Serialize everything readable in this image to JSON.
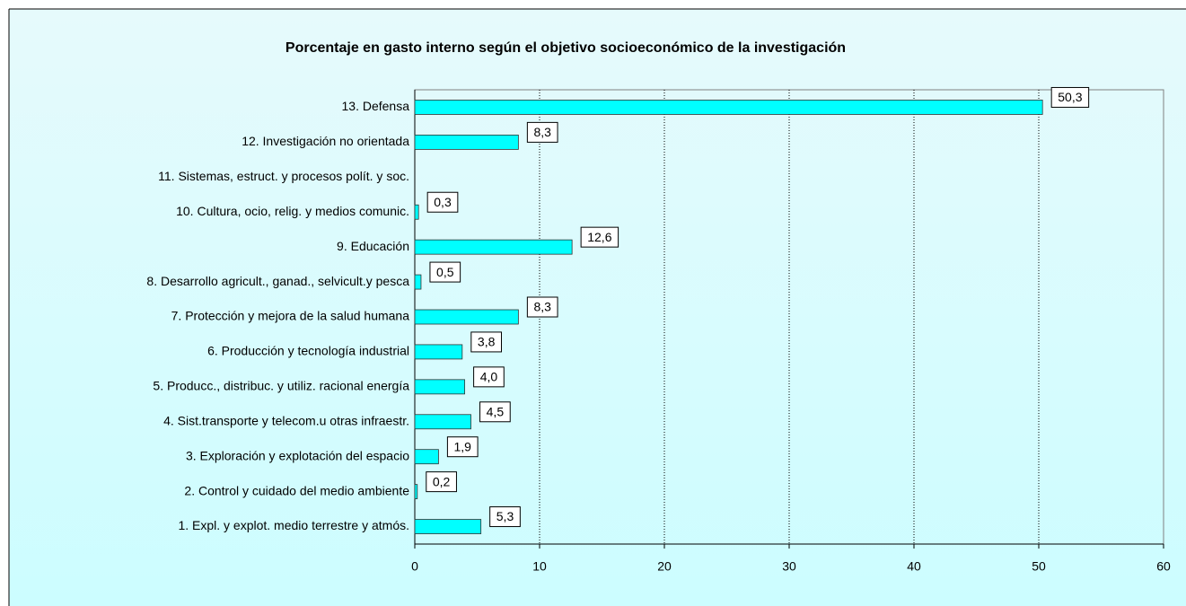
{
  "chart_data": {
    "type": "barh",
    "title": "Porcentaje en gasto interno según el objetivo socioeconómico de la investigación",
    "categories": [
      "1. Expl. y explot. medio terrestre y atmós.",
      "2. Control y cuidado del medio ambiente",
      "3. Exploración y explotación del espacio",
      "4. Sist.transporte y telecom.u otras infraestr.",
      "5. Producc., distribuc. y utiliz. racional energía",
      "6. Producción y tecnología industrial",
      "7. Protección y mejora de la salud humana",
      "8. Desarrollo agricult., ganad., selvicult.y pesca",
      "9. Educación",
      "10. Cultura, ocio, relig. y medios comunic.",
      "11. Sistemas, estruct. y procesos polít. y soc.",
      "12. Investigación no orientada",
      "13. Defensa"
    ],
    "values": [
      5.3,
      0.2,
      1.9,
      4.5,
      4.0,
      3.8,
      8.3,
      0.5,
      12.6,
      0.3,
      null,
      8.3,
      50.3
    ],
    "value_labels": [
      "5,3",
      "0,2",
      "1,9",
      "4,5",
      "4,0",
      "3,8",
      "8,3",
      "0,5",
      "12,6",
      "0,3",
      null,
      "8,3",
      "50,3"
    ],
    "color": "#00ffff",
    "xlim": [
      0,
      60
    ],
    "xticks": [
      0,
      10,
      20,
      30,
      40,
      50,
      60
    ],
    "grid": true
  }
}
